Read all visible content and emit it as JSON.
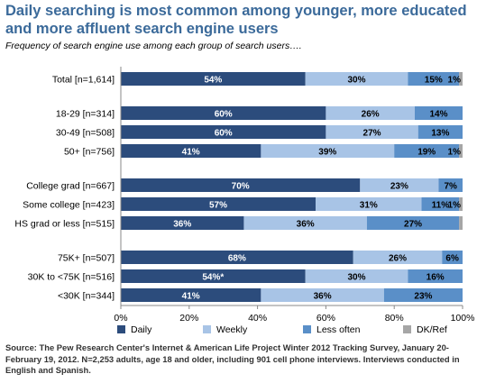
{
  "title": "Daily searching is most common among younger, more educated and more affluent search engine users",
  "subtitle": "Frequency of search engine use among each group of search users….",
  "source": "Source: The Pew Research Center's Internet & American Life Project Winter 2012 Tracking Survey, January 20-February 19, 2012. N=2,253 adults, age 18 and older, including 901 cell phone interviews. Interviews conducted in English and Spanish.",
  "chart_data": {
    "type": "bar",
    "orientation": "horizontal",
    "stacked": true,
    "xlim": [
      0,
      100
    ],
    "x_ticks": [
      "0%",
      "20%",
      "40%",
      "60%",
      "80%",
      "100%"
    ],
    "grid": false,
    "legend_position": "bottom",
    "categories": [
      "Total [n=1,614]",
      "18-29 [n=314]",
      "30-49 [n=508]",
      "50+ [n=756]",
      "College grad [n=667]",
      "Some college [n=423]",
      "HS grad or less [n=515]",
      "75K+ [n=507]",
      "30K to <75K [n=516]",
      "<30K [n=344]"
    ],
    "groups": [
      1,
      2,
      2,
      2,
      3,
      3,
      3,
      4,
      4,
      4
    ],
    "series": [
      {
        "name": "Daily",
        "color": "#2c4c7c",
        "label_color": "#ffffff",
        "values": [
          54,
          60,
          60,
          41,
          70,
          57,
          36,
          68,
          54,
          41
        ],
        "labels": [
          "54%",
          "60%",
          "60%",
          "41%",
          "70%",
          "57%",
          "36%",
          "68%",
          "54%*",
          "41%"
        ]
      },
      {
        "name": "Weekly",
        "color": "#a8c4e6",
        "label_color": "#000000",
        "values": [
          30,
          26,
          27,
          39,
          23,
          31,
          36,
          26,
          30,
          36
        ],
        "labels": [
          "30%",
          "26%",
          "27%",
          "39%",
          "23%",
          "31%",
          "36%",
          "26%",
          "30%",
          "36%"
        ]
      },
      {
        "name": "Less often",
        "color": "#5a8fc8",
        "label_color": "#000000",
        "values": [
          15,
          14,
          13,
          19,
          7,
          11,
          27,
          6,
          16,
          23
        ],
        "labels": [
          "15%",
          "14%",
          "13%",
          "19%",
          "7%",
          "11%",
          "27%",
          "6%",
          "16%",
          "23%"
        ]
      },
      {
        "name": "DK/Ref",
        "color": "#a6a6a6",
        "label_color": "#000000",
        "values": [
          1,
          0,
          0,
          1,
          0,
          1,
          1,
          0,
          0,
          0
        ],
        "labels": [
          "1%",
          "",
          "",
          "1%",
          "",
          "1%",
          "",
          "",
          "",
          ""
        ]
      }
    ]
  }
}
